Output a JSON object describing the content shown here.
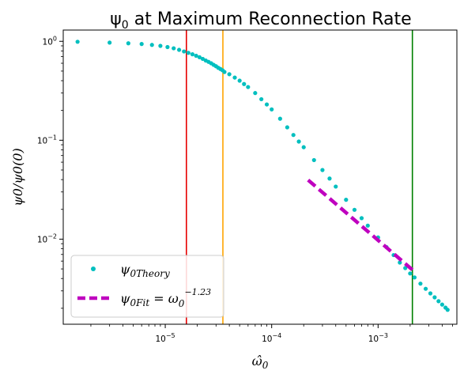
{
  "chart_data": {
    "type": "scatter",
    "title_prefix": "ψ",
    "title_sub": "0",
    "title_suffix": " at Maximum Reconnection Rate",
    "xlabel_main": "ω̂",
    "xlabel_sub": "0",
    "ylabel": "ψ0/ψ0(0)",
    "xscale": "log",
    "yscale": "log",
    "xlim": [
      1.1e-06,
      0.0055
    ],
    "ylim": [
      0.00138,
      1.3
    ],
    "x_ticks": [
      {
        "value": 1e-05,
        "base": "10",
        "exp": "−5"
      },
      {
        "value": 0.0001,
        "base": "10",
        "exp": "−4"
      },
      {
        "value": 0.001,
        "base": "10",
        "exp": "−3"
      }
    ],
    "y_ticks": [
      {
        "value": 0.01,
        "base": "10",
        "exp": "−2"
      },
      {
        "value": 0.1,
        "base": "10",
        "exp": "−1"
      },
      {
        "value": 1,
        "base": "10",
        "exp": "0"
      }
    ],
    "vertical_lines": [
      {
        "x": 1.58e-05,
        "color": "#e60000"
      },
      {
        "x": 3.48e-05,
        "color": "#ffa500"
      },
      {
        "x": 0.0021,
        "color": "#008000"
      }
    ],
    "series": [
      {
        "name_main": "ψ",
        "name_sub": "0Theory",
        "kind": "dots",
        "color": "#00bfbf",
        "x": [
          1.5e-06,
          3e-06,
          4.5e-06,
          6e-06,
          7.5e-06,
          9e-06,
          1.05e-05,
          1.2e-05,
          1.35e-05,
          1.5e-05,
          1.65e-05,
          1.8e-05,
          1.95e-05,
          2.1e-05,
          2.25e-05,
          2.4e-05,
          2.55e-05,
          2.7e-05,
          2.85e-05,
          3e-05,
          3.15e-05,
          3.3e-05,
          3.45e-05,
          3.6e-05,
          4e-05,
          4.5e-05,
          5e-05,
          5.5e-05,
          6e-05,
          7e-05,
          8e-05,
          9e-05,
          0.0001,
          0.00012,
          0.00014,
          0.00016,
          0.00018,
          0.0002,
          0.00025,
          0.0003,
          0.00035,
          0.0004,
          0.0005,
          0.0006,
          0.0007,
          0.0008,
          0.001,
          0.0012,
          0.0014,
          0.0016,
          0.0018,
          0.002,
          0.0022,
          0.0025,
          0.0028,
          0.0031,
          0.0034,
          0.0037,
          0.004,
          0.0043,
          0.0045
        ],
        "y": [
          0.99,
          0.97,
          0.955,
          0.94,
          0.92,
          0.9,
          0.875,
          0.85,
          0.82,
          0.79,
          0.765,
          0.74,
          0.715,
          0.69,
          0.665,
          0.64,
          0.62,
          0.6,
          0.578,
          0.56,
          0.54,
          0.525,
          0.51,
          0.49,
          0.465,
          0.43,
          0.4,
          0.37,
          0.345,
          0.3,
          0.26,
          0.23,
          0.205,
          0.165,
          0.135,
          0.113,
          0.097,
          0.085,
          0.063,
          0.05,
          0.041,
          0.034,
          0.025,
          0.0198,
          0.0163,
          0.0137,
          0.0104,
          0.0083,
          0.0069,
          0.0058,
          0.0051,
          0.0045,
          0.0041,
          0.00355,
          0.00315,
          0.00283,
          0.00258,
          0.00236,
          0.00218,
          0.00203,
          0.00193
        ]
      },
      {
        "name_main": "ψ",
        "name_sub": "0Fit",
        "name_eq": " = ω",
        "name_eq_sub": "0",
        "name_eq_sup": "−1.23",
        "kind": "dashed",
        "color": "#bf00bf",
        "x": [
          0.00022,
          0.0021
        ],
        "y": [
          0.0396,
          0.0049
        ]
      }
    ],
    "legend_position": "lower left"
  }
}
